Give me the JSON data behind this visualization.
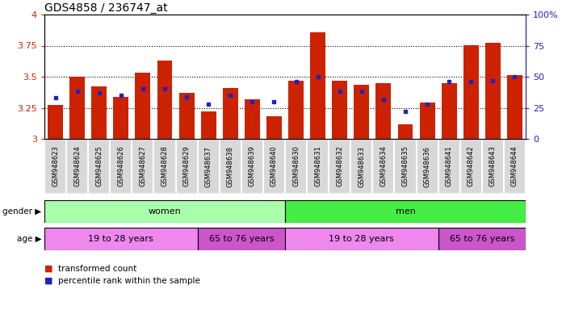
{
  "title": "GDS4858 / 236747_at",
  "samples": [
    "GSM948623",
    "GSM948624",
    "GSM948625",
    "GSM948626",
    "GSM948627",
    "GSM948628",
    "GSM948629",
    "GSM948637",
    "GSM948638",
    "GSM948639",
    "GSM948640",
    "GSM948630",
    "GSM948631",
    "GSM948632",
    "GSM948633",
    "GSM948634",
    "GSM948635",
    "GSM948636",
    "GSM948641",
    "GSM948642",
    "GSM948643",
    "GSM948644"
  ],
  "bar_heights": [
    3.27,
    3.5,
    3.42,
    3.335,
    3.535,
    3.63,
    3.37,
    3.22,
    3.41,
    3.315,
    3.185,
    3.47,
    3.855,
    3.47,
    3.435,
    3.445,
    3.115,
    3.295,
    3.45,
    3.755,
    3.775,
    3.51
  ],
  "percentile_ranks": [
    33,
    38,
    37,
    35,
    40,
    40,
    34,
    28,
    35,
    30,
    30,
    46,
    50,
    38,
    38,
    32,
    22,
    28,
    46,
    46,
    47,
    50
  ],
  "ymin": 3.0,
  "ymax": 4.0,
  "yticks": [
    3.0,
    3.25,
    3.5,
    3.75,
    4.0
  ],
  "right_yticks": [
    0,
    25,
    50,
    75,
    100
  ],
  "bar_color": "#cc2200",
  "dot_color": "#2222bb",
  "gender_groups": [
    {
      "label": "women",
      "start": 0,
      "end": 11,
      "color": "#aaffaa"
    },
    {
      "label": "men",
      "start": 11,
      "end": 22,
      "color": "#44ee44"
    }
  ],
  "age_groups": [
    {
      "label": "19 to 28 years",
      "start": 0,
      "end": 7,
      "color": "#ee88ee"
    },
    {
      "label": "65 to 76 years",
      "start": 7,
      "end": 11,
      "color": "#cc55cc"
    },
    {
      "label": "19 to 28 years",
      "start": 11,
      "end": 18,
      "color": "#ee88ee"
    },
    {
      "label": "65 to 76 years",
      "start": 18,
      "end": 22,
      "color": "#cc55cc"
    }
  ],
  "legend_bar_label": "transformed count",
  "legend_dot_label": "percentile rank within the sample",
  "title_fontsize": 10,
  "bar_color_left_axis": "#cc2200",
  "dot_color_right_axis": "#2222bb",
  "col_bg_color": "#d8d8d8",
  "col_border_color": "#ffffff"
}
